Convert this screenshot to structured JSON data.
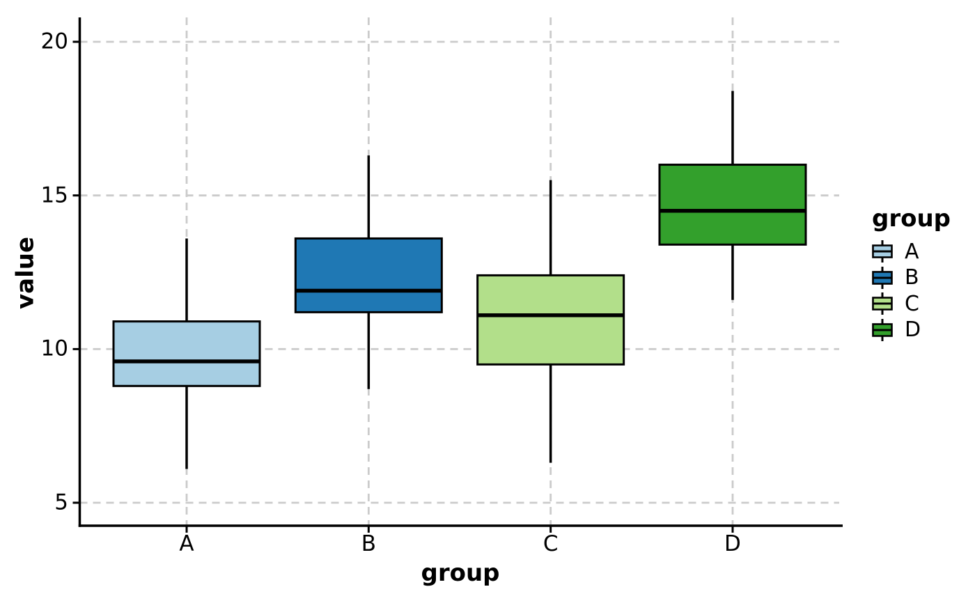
{
  "chart_data": {
    "type": "boxplot",
    "title": "",
    "xlabel": "group",
    "ylabel": "value",
    "categories": [
      "A",
      "B",
      "C",
      "D"
    ],
    "yticks": [
      20,
      15,
      10,
      5
    ],
    "ylim": [
      4.3,
      20.8
    ],
    "grid": {
      "visible": true,
      "style": "dashed",
      "color": "#cbcbcb"
    },
    "axis_color": "#000000",
    "box_outline_color": "#000000",
    "series": [
      {
        "name": "A",
        "color": "#a6cee3",
        "whisker_low": 6.1,
        "q1": 8.8,
        "median": 9.6,
        "q3": 10.9,
        "whisker_high": 13.6,
        "outliers": []
      },
      {
        "name": "B",
        "color": "#1f78b4",
        "whisker_low": 8.7,
        "q1": 11.2,
        "median": 11.9,
        "q3": 13.6,
        "whisker_high": 16.3,
        "outliers": []
      },
      {
        "name": "C",
        "color": "#b2df8a",
        "whisker_low": 6.3,
        "q1": 9.5,
        "median": 11.1,
        "q3": 12.4,
        "whisker_high": 15.5,
        "outliers": []
      },
      {
        "name": "D",
        "color": "#33a02c",
        "whisker_low": 11.6,
        "q1": 13.4,
        "median": 14.5,
        "q3": 16.0,
        "whisker_high": 18.4,
        "outliers": []
      }
    ],
    "legend": {
      "title": "group",
      "position": "right",
      "entries": [
        {
          "label": "A",
          "color": "#a6cee3"
        },
        {
          "label": "B",
          "color": "#1f78b4"
        },
        {
          "label": "C",
          "color": "#b2df8a"
        },
        {
          "label": "D",
          "color": "#33a02c"
        }
      ]
    }
  }
}
